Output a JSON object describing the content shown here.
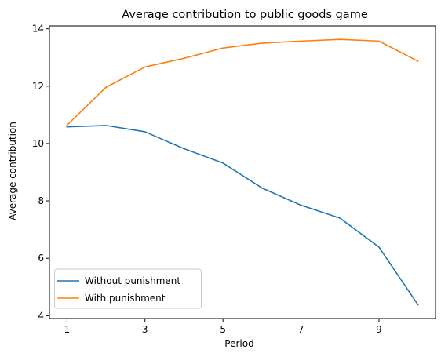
{
  "chart_data": {
    "type": "line",
    "title": "Average contribution to public goods game",
    "xlabel": "Period",
    "ylabel": "Average contribution",
    "x": [
      1,
      2,
      3,
      4,
      5,
      6,
      7,
      8,
      9,
      10
    ],
    "xlim": [
      0.55,
      10.45
    ],
    "ylim": [
      3.9,
      14.1
    ],
    "xticks": [
      1,
      3,
      5,
      7,
      9
    ],
    "yticks": [
      4,
      6,
      8,
      10,
      12,
      14
    ],
    "grid": false,
    "legend_position": "lower-left",
    "series": [
      {
        "name": "Without punishment",
        "color": "#1f77b4",
        "values": [
          10.58,
          10.63,
          10.41,
          9.82,
          9.32,
          8.45,
          7.85,
          7.4,
          6.39,
          4.38
        ]
      },
      {
        "name": "With punishment",
        "color": "#ff7f0e",
        "values": [
          10.64,
          11.96,
          12.67,
          12.97,
          13.33,
          13.5,
          13.57,
          13.63,
          13.57,
          12.87
        ]
      }
    ]
  }
}
